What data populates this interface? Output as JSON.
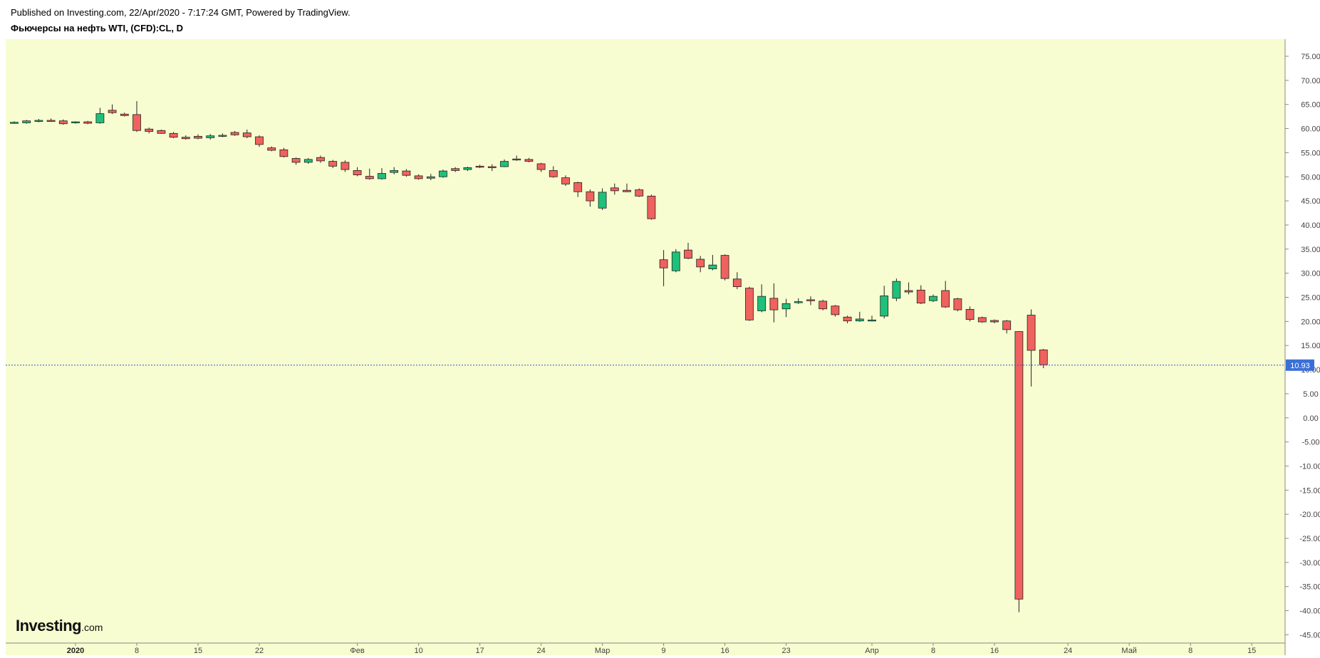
{
  "header": {
    "published": "Published on Investing.com, 22/Apr/2020 - 7:17:24 GMT, Powered by TradingView.",
    "title": "Фьючерсы на нефть WTI, (CFD):CL, D"
  },
  "logo": {
    "brand": "Investing",
    "suffix": ".com"
  },
  "colors": {
    "background": "#f7fdd0",
    "up": "#1ec17a",
    "down": "#f0625d",
    "wick": "#222222",
    "price_line": "#3355dd",
    "price_label_bg": "#3a6fd8"
  },
  "chart_data": {
    "type": "candlestick",
    "title": "Фьючерсы на нефть WTI, (CFD):CL, D",
    "xlabel": "",
    "ylabel": "",
    "ylim": [
      -45,
      75
    ],
    "grid": false,
    "last_price": 10.93,
    "last_price_label": "10.93",
    "y_ticks": [
      "75.00",
      "70.00",
      "65.00",
      "60.00",
      "55.00",
      "50.00",
      "45.00",
      "40.00",
      "35.00",
      "30.00",
      "25.00",
      "20.00",
      "15.00",
      "10.00",
      "5.00",
      "0.00",
      "-5.00",
      "-10.00",
      "-15.00",
      "-20.00",
      "-25.00",
      "-30.00",
      "-35.00",
      "-40.00",
      "-45.00"
    ],
    "x_ticks": [
      {
        "label": "2020",
        "day": 5,
        "bold": true
      },
      {
        "label": "8",
        "day": 10
      },
      {
        "label": "15",
        "day": 15
      },
      {
        "label": "22",
        "day": 20
      },
      {
        "label": "Фев",
        "day": 28
      },
      {
        "label": "10",
        "day": 33
      },
      {
        "label": "17",
        "day": 38
      },
      {
        "label": "24",
        "day": 43
      },
      {
        "label": "Мар",
        "day": 48
      },
      {
        "label": "9",
        "day": 53
      },
      {
        "label": "16",
        "day": 58
      },
      {
        "label": "23",
        "day": 63
      },
      {
        "label": "Апр",
        "day": 70
      },
      {
        "label": "8",
        "day": 75
      },
      {
        "label": "16",
        "day": 80
      },
      {
        "label": "24",
        "day": 86
      },
      {
        "label": "Май",
        "day": 91
      },
      {
        "label": "8",
        "day": 96
      },
      {
        "label": "15",
        "day": 101
      }
    ],
    "candles": [
      {
        "o": 61.2,
        "h": 61.5,
        "l": 61.0,
        "c": 61.3
      },
      {
        "o": 61.2,
        "h": 61.8,
        "l": 61.0,
        "c": 61.6
      },
      {
        "o": 61.6,
        "h": 62.0,
        "l": 61.3,
        "c": 61.7
      },
      {
        "o": 61.7,
        "h": 62.1,
        "l": 61.4,
        "c": 61.6
      },
      {
        "o": 61.6,
        "h": 61.9,
        "l": 60.8,
        "c": 61.0
      },
      {
        "o": 61.2,
        "h": 61.5,
        "l": 61.0,
        "c": 61.4
      },
      {
        "o": 61.4,
        "h": 61.6,
        "l": 60.9,
        "c": 61.1
      },
      {
        "o": 61.2,
        "h": 64.3,
        "l": 61.0,
        "c": 63.1
      },
      {
        "o": 63.8,
        "h": 65.0,
        "l": 63.0,
        "c": 63.3
      },
      {
        "o": 63.0,
        "h": 63.3,
        "l": 62.5,
        "c": 62.7
      },
      {
        "o": 62.9,
        "h": 65.7,
        "l": 59.3,
        "c": 59.6
      },
      {
        "o": 59.9,
        "h": 60.2,
        "l": 59.0,
        "c": 59.4
      },
      {
        "o": 59.6,
        "h": 59.8,
        "l": 58.9,
        "c": 59.0
      },
      {
        "o": 59.0,
        "h": 59.3,
        "l": 58.0,
        "c": 58.2
      },
      {
        "o": 58.2,
        "h": 58.6,
        "l": 57.7,
        "c": 57.9
      },
      {
        "o": 58.4,
        "h": 58.8,
        "l": 57.8,
        "c": 58.0
      },
      {
        "o": 58.1,
        "h": 58.9,
        "l": 57.7,
        "c": 58.5
      },
      {
        "o": 58.5,
        "h": 59.0,
        "l": 58.2,
        "c": 58.6
      },
      {
        "o": 59.2,
        "h": 59.5,
        "l": 58.5,
        "c": 58.7
      },
      {
        "o": 59.1,
        "h": 59.8,
        "l": 58.0,
        "c": 58.3
      },
      {
        "o": 58.3,
        "h": 58.6,
        "l": 56.2,
        "c": 56.7
      },
      {
        "o": 56.0,
        "h": 56.3,
        "l": 55.3,
        "c": 55.5
      },
      {
        "o": 55.6,
        "h": 56.0,
        "l": 54.0,
        "c": 54.2
      },
      {
        "o": 53.8,
        "h": 54.0,
        "l": 52.5,
        "c": 53.0
      },
      {
        "o": 53.0,
        "h": 53.9,
        "l": 52.7,
        "c": 53.6
      },
      {
        "o": 54.0,
        "h": 54.4,
        "l": 52.9,
        "c": 53.3
      },
      {
        "o": 53.2,
        "h": 53.5,
        "l": 51.8,
        "c": 52.2
      },
      {
        "o": 53.0,
        "h": 53.4,
        "l": 51.0,
        "c": 51.5
      },
      {
        "o": 51.3,
        "h": 52.0,
        "l": 50.1,
        "c": 50.4
      },
      {
        "o": 50.1,
        "h": 51.7,
        "l": 49.4,
        "c": 49.6
      },
      {
        "o": 49.6,
        "h": 51.8,
        "l": 49.4,
        "c": 50.7
      },
      {
        "o": 50.9,
        "h": 52.0,
        "l": 50.5,
        "c": 51.3
      },
      {
        "o": 51.2,
        "h": 51.6,
        "l": 50.0,
        "c": 50.3
      },
      {
        "o": 50.2,
        "h": 50.5,
        "l": 49.4,
        "c": 49.6
      },
      {
        "o": 49.7,
        "h": 50.6,
        "l": 49.3,
        "c": 50.0
      },
      {
        "o": 50.0,
        "h": 51.5,
        "l": 49.8,
        "c": 51.2
      },
      {
        "o": 51.7,
        "h": 52.0,
        "l": 51.0,
        "c": 51.3
      },
      {
        "o": 51.5,
        "h": 52.1,
        "l": 51.2,
        "c": 51.9
      },
      {
        "o": 52.2,
        "h": 52.5,
        "l": 51.8,
        "c": 52.1
      },
      {
        "o": 52.1,
        "h": 52.6,
        "l": 51.2,
        "c": 51.9
      },
      {
        "o": 52.1,
        "h": 53.6,
        "l": 52.0,
        "c": 53.2
      },
      {
        "o": 53.7,
        "h": 54.4,
        "l": 53.3,
        "c": 53.6
      },
      {
        "o": 53.6,
        "h": 53.9,
        "l": 53.0,
        "c": 53.2
      },
      {
        "o": 52.7,
        "h": 52.9,
        "l": 51.0,
        "c": 51.5
      },
      {
        "o": 51.3,
        "h": 52.2,
        "l": 49.8,
        "c": 50.0
      },
      {
        "o": 49.8,
        "h": 50.3,
        "l": 48.1,
        "c": 48.5
      },
      {
        "o": 48.8,
        "h": 49.0,
        "l": 45.8,
        "c": 46.9
      },
      {
        "o": 46.9,
        "h": 47.4,
        "l": 43.8,
        "c": 45.0
      },
      {
        "o": 43.5,
        "h": 47.6,
        "l": 43.1,
        "c": 46.8
      },
      {
        "o": 47.7,
        "h": 48.6,
        "l": 46.3,
        "c": 47.1
      },
      {
        "o": 47.2,
        "h": 48.6,
        "l": 46.8,
        "c": 46.9
      },
      {
        "o": 47.3,
        "h": 47.6,
        "l": 45.8,
        "c": 46.0
      },
      {
        "o": 46.0,
        "h": 46.3,
        "l": 41.1,
        "c": 41.3
      },
      {
        "o": 32.8,
        "h": 34.8,
        "l": 27.3,
        "c": 31.1
      },
      {
        "o": 30.5,
        "h": 35.0,
        "l": 30.2,
        "c": 34.4
      },
      {
        "o": 34.8,
        "h": 36.3,
        "l": 32.9,
        "c": 33.1
      },
      {
        "o": 32.9,
        "h": 33.6,
        "l": 30.2,
        "c": 31.3
      },
      {
        "o": 30.9,
        "h": 33.8,
        "l": 30.6,
        "c": 31.7
      },
      {
        "o": 33.7,
        "h": 33.9,
        "l": 28.5,
        "c": 28.9
      },
      {
        "o": 28.8,
        "h": 30.2,
        "l": 26.7,
        "c": 27.2
      },
      {
        "o": 26.9,
        "h": 27.2,
        "l": 20.1,
        "c": 20.3
      },
      {
        "o": 22.2,
        "h": 27.7,
        "l": 21.9,
        "c": 25.2
      },
      {
        "o": 24.8,
        "h": 27.9,
        "l": 19.8,
        "c": 22.4
      },
      {
        "o": 22.6,
        "h": 24.7,
        "l": 20.9,
        "c": 23.7
      },
      {
        "o": 24.0,
        "h": 24.8,
        "l": 23.6,
        "c": 24.1
      },
      {
        "o": 24.5,
        "h": 25.2,
        "l": 23.4,
        "c": 24.3
      },
      {
        "o": 24.2,
        "h": 24.5,
        "l": 22.3,
        "c": 22.6
      },
      {
        "o": 23.2,
        "h": 23.4,
        "l": 21.0,
        "c": 21.4
      },
      {
        "o": 20.9,
        "h": 21.2,
        "l": 19.6,
        "c": 20.1
      },
      {
        "o": 20.1,
        "h": 22.0,
        "l": 19.9,
        "c": 20.5
      },
      {
        "o": 20.2,
        "h": 21.2,
        "l": 20.0,
        "c": 20.3
      },
      {
        "o": 21.1,
        "h": 27.4,
        "l": 20.6,
        "c": 25.3
      },
      {
        "o": 24.8,
        "h": 28.9,
        "l": 24.2,
        "c": 28.3
      },
      {
        "o": 26.4,
        "h": 28.1,
        "l": 25.6,
        "c": 26.1
      },
      {
        "o": 26.5,
        "h": 27.5,
        "l": 23.6,
        "c": 23.8
      },
      {
        "o": 24.3,
        "h": 25.6,
        "l": 24.0,
        "c": 25.2
      },
      {
        "o": 26.4,
        "h": 28.4,
        "l": 22.8,
        "c": 23.0
      },
      {
        "o": 24.7,
        "h": 24.9,
        "l": 22.1,
        "c": 22.4
      },
      {
        "o": 22.5,
        "h": 23.1,
        "l": 20.0,
        "c": 20.4
      },
      {
        "o": 20.8,
        "h": 21.0,
        "l": 19.7,
        "c": 19.9
      },
      {
        "o": 20.2,
        "h": 20.4,
        "l": 19.6,
        "c": 19.9
      },
      {
        "o": 20.1,
        "h": 20.3,
        "l": 17.5,
        "c": 18.3
      },
      {
        "o": 17.9,
        "h": 17.9,
        "l": -40.3,
        "c": -37.6
      },
      {
        "o": 21.3,
        "h": 22.5,
        "l": 6.5,
        "c": 14.0
      },
      {
        "o": 14.1,
        "h": 14.3,
        "l": 10.3,
        "c": 11.0
      }
    ]
  }
}
